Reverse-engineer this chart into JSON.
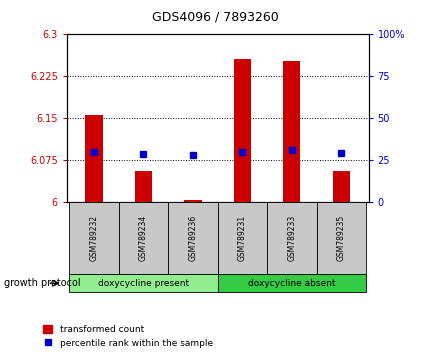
{
  "title": "GDS4096 / 7893260",
  "samples": [
    "GSM789232",
    "GSM789234",
    "GSM789236",
    "GSM789231",
    "GSM789233",
    "GSM789235"
  ],
  "red_values": [
    6.155,
    6.055,
    6.003,
    6.255,
    6.252,
    6.055
  ],
  "blue_values": [
    6.088,
    6.085,
    6.083,
    6.088,
    6.092,
    6.087
  ],
  "ylim_left": [
    6.0,
    6.3
  ],
  "ylim_right": [
    0,
    100
  ],
  "yticks_left": [
    6.0,
    6.075,
    6.15,
    6.225,
    6.3
  ],
  "yticks_right": [
    0,
    25,
    50,
    75,
    100
  ],
  "ytick_labels_left": [
    "6",
    "6.075",
    "6.15",
    "6.225",
    "6.3"
  ],
  "ytick_labels_right": [
    "0",
    "25",
    "50",
    "75",
    "100%"
  ],
  "grid_lines": [
    6.075,
    6.15,
    6.225
  ],
  "group1_label": "doxycycline present",
  "group2_label": "doxycycline absent",
  "group1_indices": [
    0,
    1,
    2
  ],
  "group2_indices": [
    3,
    4,
    5
  ],
  "growth_protocol_label": "growth protocol",
  "legend_red_label": "transformed count",
  "legend_blue_label": "percentile rank within the sample",
  "bar_color": "#cc0000",
  "dot_color": "#0000cc",
  "group1_bg": "#90ee90",
  "group2_bg": "#33cc44",
  "sample_box_color": "#c8c8c8",
  "bar_width": 0.35,
  "base_value": 6.0
}
